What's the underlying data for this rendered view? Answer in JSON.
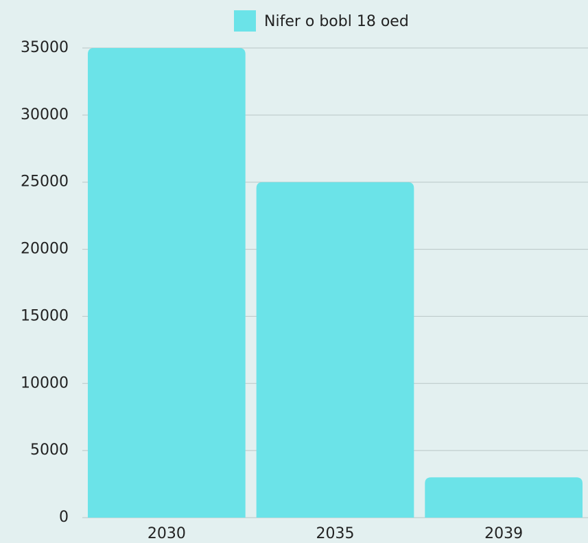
{
  "chart_data": {
    "type": "bar",
    "categories": [
      "2030",
      "2035",
      "2039"
    ],
    "series": [
      {
        "name": "Nifer o bobl 18 oed",
        "color": "#6be3e8",
        "values": [
          35000,
          25000,
          3000
        ]
      }
    ],
    "ylim": [
      0,
      35000
    ],
    "yticks": [
      0,
      5000,
      10000,
      15000,
      20000,
      25000,
      30000,
      35000
    ],
    "grid": true,
    "legend": "top"
  }
}
